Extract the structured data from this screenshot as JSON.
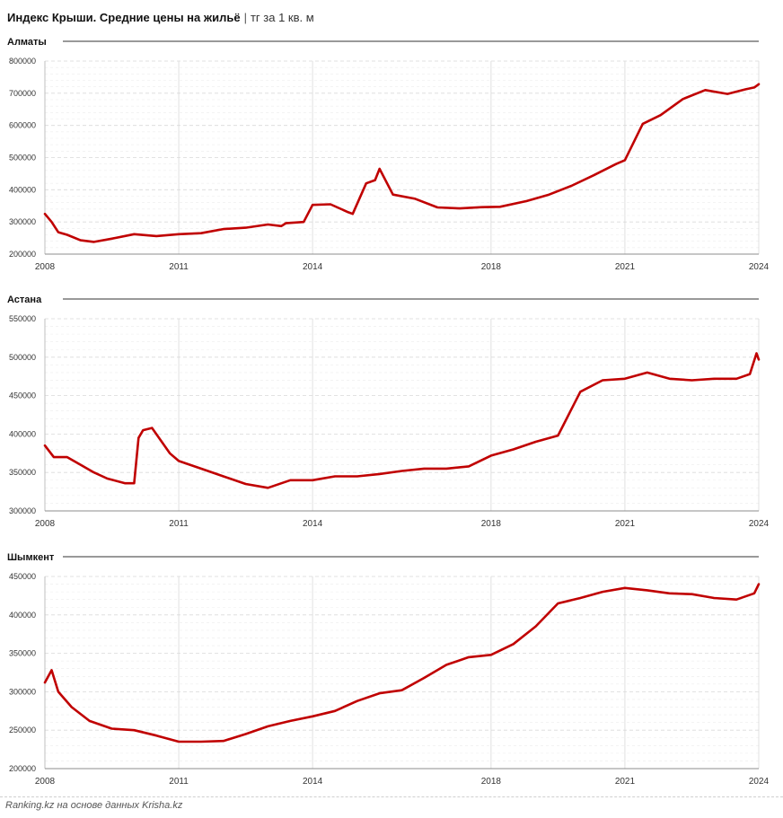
{
  "title": {
    "main": "Индекс Крыши. Средние цены на жильё",
    "separator": "|",
    "unit": "тг за 1 кв. м"
  },
  "footer": "Ranking.kz на основе данных Krisha.kz",
  "colors": {
    "line": "#c00000",
    "grid": "#d9d9d9",
    "axis": "#bfbfbf"
  },
  "chart_data": [
    {
      "type": "line",
      "title": "Алматы",
      "x_ticks": [
        "2008",
        "2011",
        "2014",
        "2018",
        "2021",
        "2024"
      ],
      "y_ticks": [
        "200000",
        "300000",
        "400000",
        "500000",
        "600000",
        "700000",
        "800000"
      ],
      "ylim": [
        200000,
        800000
      ],
      "xlim": [
        2008.0,
        2024.0
      ],
      "series": [
        {
          "x": [
            2008.0,
            2008.15,
            2008.3,
            2008.5,
            2008.8,
            2009.1,
            2009.5,
            2010.0,
            2010.5,
            2011.0,
            2011.5,
            2012.0,
            2012.5,
            2013.0,
            2013.3,
            2013.4,
            2013.8,
            2014.0,
            2014.4,
            2014.8,
            2014.9,
            2015.2,
            2015.4,
            2015.5,
            2015.8,
            2016.3,
            2016.8,
            2017.3,
            2017.8,
            2018.2,
            2018.8,
            2019.3,
            2019.8,
            2020.3,
            2020.8,
            2021.0,
            2021.4,
            2021.8,
            2022.3,
            2022.8,
            2023.3,
            2023.7,
            2023.9,
            2024.0
          ],
          "y": [
            325000,
            300000,
            268000,
            260000,
            243000,
            238000,
            248000,
            262000,
            256000,
            262000,
            265000,
            278000,
            282000,
            292000,
            287000,
            296000,
            300000,
            353000,
            355000,
            330000,
            325000,
            420000,
            430000,
            465000,
            385000,
            372000,
            345000,
            342000,
            346000,
            347000,
            365000,
            385000,
            412000,
            445000,
            480000,
            492000,
            605000,
            632000,
            682000,
            710000,
            698000,
            712000,
            718000,
            728000
          ]
        }
      ]
    },
    {
      "type": "line",
      "title": "Астана",
      "x_ticks": [
        "2008",
        "2011",
        "2014",
        "2018",
        "2021",
        "2024"
      ],
      "y_ticks": [
        "300000",
        "350000",
        "400000",
        "450000",
        "500000",
        "550000"
      ],
      "ylim": [
        300000,
        550000
      ],
      "xlim": [
        2008.0,
        2024.0
      ],
      "series": [
        {
          "x": [
            2008.0,
            2008.2,
            2008.5,
            2008.8,
            2009.1,
            2009.4,
            2009.8,
            2010.0,
            2010.1,
            2010.2,
            2010.4,
            2010.8,
            2011.0,
            2011.5,
            2012.0,
            2012.5,
            2013.0,
            2013.5,
            2014.0,
            2014.5,
            2015.0,
            2015.5,
            2016.0,
            2016.5,
            2017.0,
            2017.5,
            2018.0,
            2018.5,
            2019.0,
            2019.5,
            2020.0,
            2020.5,
            2021.0,
            2021.5,
            2022.0,
            2022.5,
            2023.0,
            2023.5,
            2023.8,
            2023.95,
            2024.0
          ],
          "y": [
            385000,
            370000,
            370000,
            360000,
            350000,
            342000,
            336000,
            336000,
            395000,
            405000,
            408000,
            375000,
            365000,
            355000,
            345000,
            335000,
            330000,
            340000,
            340000,
            345000,
            345000,
            348000,
            352000,
            355000,
            355000,
            358000,
            372000,
            380000,
            390000,
            398000,
            455000,
            470000,
            472000,
            480000,
            472000,
            470000,
            472000,
            472000,
            478000,
            505000,
            497000
          ]
        }
      ]
    },
    {
      "type": "line",
      "title": "Шымкент",
      "x_ticks": [
        "2008",
        "2011",
        "2014",
        "2018",
        "2021",
        "2024"
      ],
      "y_ticks": [
        "200000",
        "250000",
        "300000",
        "350000",
        "400000",
        "450000"
      ],
      "ylim": [
        200000,
        450000
      ],
      "xlim": [
        2008.0,
        2024.0
      ],
      "series": [
        {
          "x": [
            2008.0,
            2008.15,
            2008.3,
            2008.6,
            2009.0,
            2009.5,
            2010.0,
            2010.5,
            2011.0,
            2011.5,
            2012.0,
            2012.5,
            2013.0,
            2013.5,
            2014.0,
            2014.5,
            2015.0,
            2015.5,
            2016.0,
            2016.5,
            2017.0,
            2017.5,
            2018.0,
            2018.5,
            2019.0,
            2019.5,
            2020.0,
            2020.5,
            2021.0,
            2021.5,
            2022.0,
            2022.5,
            2023.0,
            2023.5,
            2023.9,
            2024.0
          ],
          "y": [
            312000,
            328000,
            300000,
            280000,
            262000,
            252000,
            250000,
            243000,
            235000,
            235000,
            236000,
            245000,
            255000,
            262000,
            268000,
            275000,
            288000,
            298000,
            302000,
            318000,
            335000,
            345000,
            348000,
            362000,
            385000,
            415000,
            422000,
            430000,
            435000,
            432000,
            428000,
            427000,
            422000,
            420000,
            428000,
            440000
          ]
        }
      ]
    }
  ]
}
